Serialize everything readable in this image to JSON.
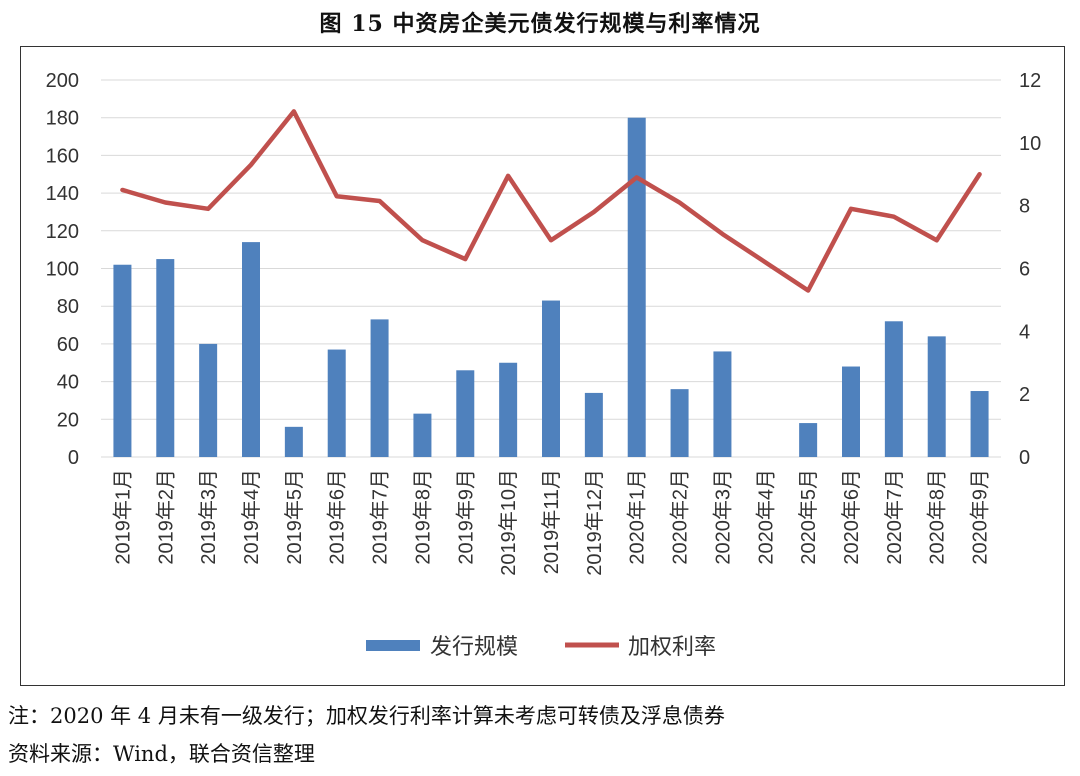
{
  "figure": {
    "title": "图 15    中资房企美元债发行规模与利率情况",
    "note": "注：2020 年 4 月未有一级发行；加权发行利率计算未考虑可转债及浮息债券",
    "source": "资料来源：Wind，联合资信整理"
  },
  "chart_data": {
    "type": "bar",
    "categories": [
      "2019年1月",
      "2019年2月",
      "2019年3月",
      "2019年4月",
      "2019年5月",
      "2019年6月",
      "2019年7月",
      "2019年8月",
      "2019年9月",
      "2019年10月",
      "2019年11月",
      "2019年12月",
      "2020年1月",
      "2020年2月",
      "2020年3月",
      "2020年4月",
      "2020年5月",
      "2020年6月",
      "2020年7月",
      "2020年8月",
      "2020年9月"
    ],
    "series": [
      {
        "name": "发行规模",
        "type": "bar",
        "axis": "left",
        "color": "#4F81BD",
        "values": [
          102,
          105,
          60,
          114,
          16,
          57,
          73,
          23,
          46,
          50,
          83,
          34,
          180,
          36,
          56,
          0,
          18,
          48,
          72,
          64,
          35
        ]
      },
      {
        "name": "加权利率",
        "type": "line",
        "axis": "right",
        "color": "#C0504D",
        "values": [
          8.5,
          8.1,
          7.9,
          9.3,
          11.0,
          8.3,
          8.15,
          6.9,
          6.3,
          8.95,
          6.9,
          7.8,
          8.9,
          8.1,
          7.1,
          6.2,
          5.3,
          7.9,
          7.65,
          6.9,
          9.0
        ]
      }
    ],
    "y_left": {
      "min": 0,
      "max": 200,
      "step": 20,
      "ticks": [
        "0",
        "20",
        "40",
        "60",
        "80",
        "100",
        "120",
        "140",
        "160",
        "180",
        "200"
      ]
    },
    "y_right": {
      "min": 0,
      "max": 12,
      "step": 2,
      "ticks": [
        "0",
        "2",
        "4",
        "6",
        "8",
        "10",
        "12"
      ]
    },
    "grid": true,
    "legend": {
      "position": "bottom",
      "items": [
        "发行规模",
        "加权利率"
      ]
    }
  }
}
